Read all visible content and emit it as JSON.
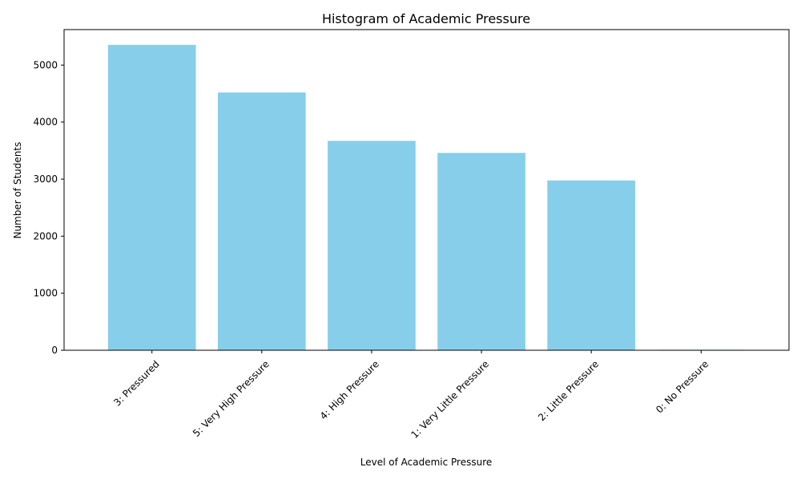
{
  "chart_data": {
    "type": "bar",
    "title": "Histogram of Academic Pressure",
    "xlabel": "Level of Academic Pressure",
    "ylabel": "Number of Students",
    "categories": [
      "3: Pressured",
      "5: Very High Pressure",
      "4: High Pressure",
      "1: Very Little Pressure",
      "2: Little Pressure",
      "0: No Pressure"
    ],
    "values": [
      5354,
      4520,
      3671,
      3460,
      2977,
      9
    ],
    "ylim": [
      0,
      5622
    ],
    "yticks": [
      0,
      1000,
      2000,
      3000,
      4000,
      5000
    ],
    "bar_color": "#87ceeb",
    "grid": false,
    "legend": "none"
  }
}
